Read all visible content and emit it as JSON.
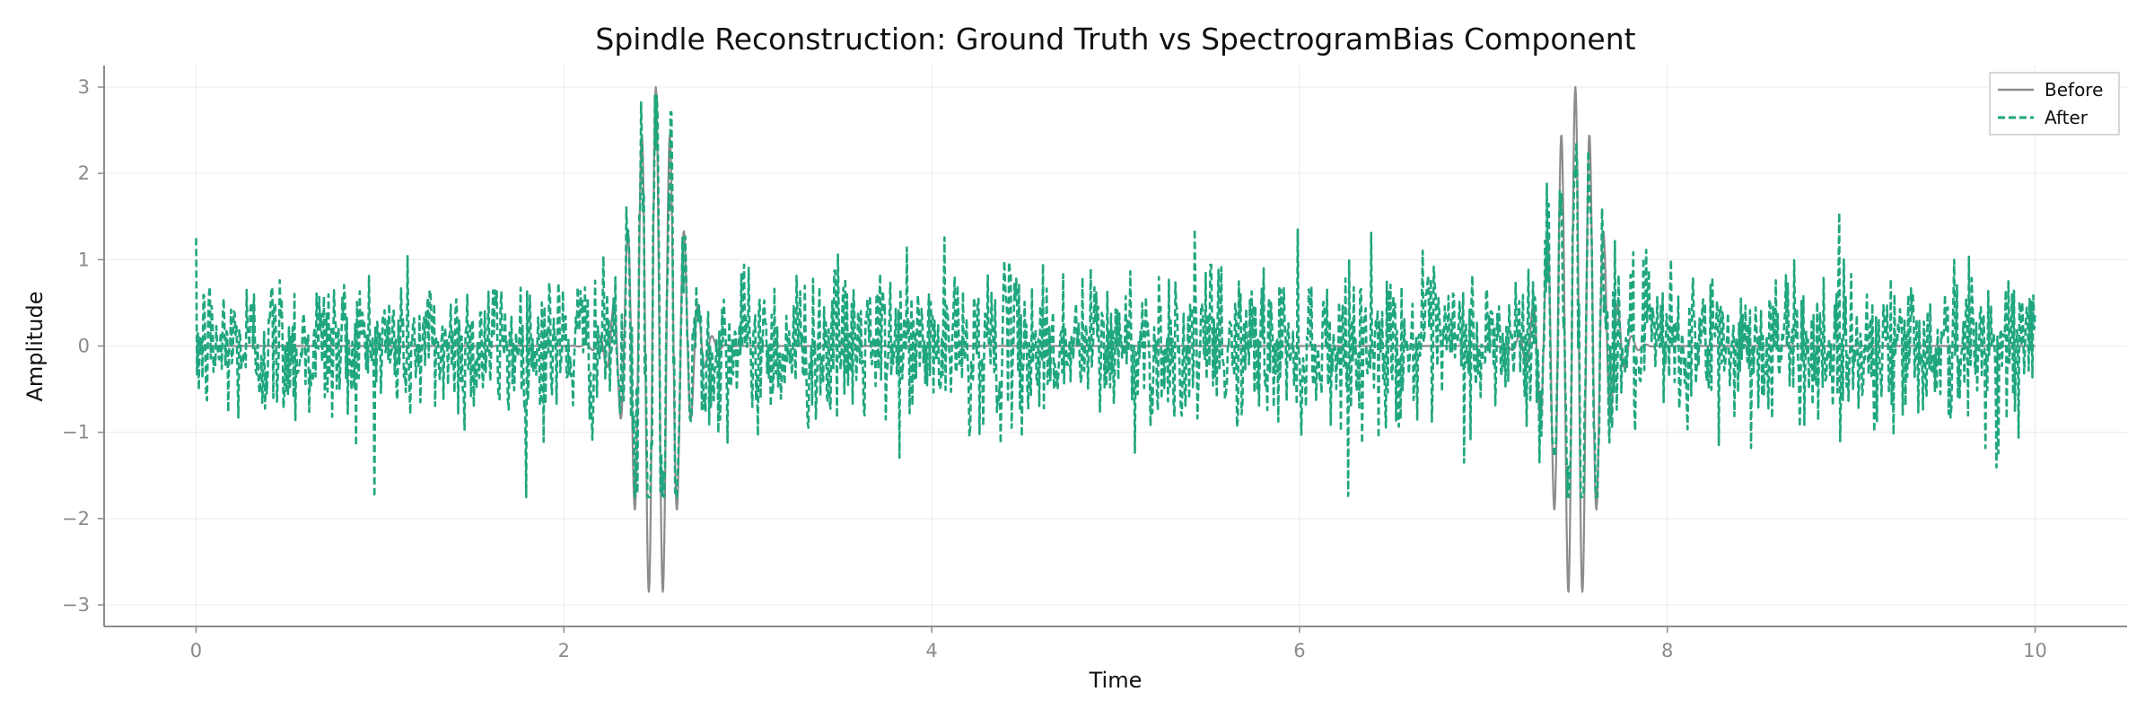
{
  "chart_data": {
    "type": "line",
    "title": "Spindle Reconstruction: Ground Truth vs SpectrogramBias Component",
    "xlabel": "Time",
    "ylabel": "Amplitude",
    "xlim": [
      -0.5,
      10.5
    ],
    "ylim": [
      -3.25,
      3.25
    ],
    "xticks": [
      0,
      2,
      4,
      6,
      8,
      10
    ],
    "xtick_labels": [
      "0",
      "2",
      "4",
      "6",
      "8",
      "10"
    ],
    "yticks": [
      -3,
      -2,
      -1,
      0,
      1,
      2,
      3
    ],
    "ytick_labels": [
      "−3",
      "−2",
      "−1",
      "0",
      "1",
      "2",
      "3"
    ],
    "grid": true,
    "legend_position": "top-right",
    "series": [
      {
        "name": "Before",
        "color": "#8c8c8c",
        "style": "solid",
        "description": "ground-truth signal: zero except two spindle bursts",
        "bursts": [
          {
            "center": 2.5,
            "peak_amplitude": 3.0,
            "frequency_hz": 13,
            "extent": [
              2.2,
              2.8
            ]
          },
          {
            "center": 7.5,
            "peak_amplitude": 3.0,
            "frequency_hz": 13,
            "extent": [
              7.2,
              7.8
            ]
          }
        ],
        "x_range": [
          0,
          10
        ]
      },
      {
        "name": "After",
        "color": "#1fa67f",
        "style": "dashed",
        "description": "reconstruction: noise around 0 (roughly ±1.5) plus attenuated spindle bursts",
        "bursts": [
          {
            "center": 2.5,
            "peak_amplitude": 2.7,
            "frequency_hz": 13,
            "extent": [
              2.2,
              2.8
            ]
          },
          {
            "center": 7.5,
            "peak_amplitude": 2.4,
            "frequency_hz": 13,
            "extent": [
              7.2,
              7.8
            ]
          }
        ],
        "noise_std": 0.45,
        "noise_range": [
          -1.75,
          1.6
        ],
        "x_range": [
          0,
          10
        ]
      }
    ]
  }
}
